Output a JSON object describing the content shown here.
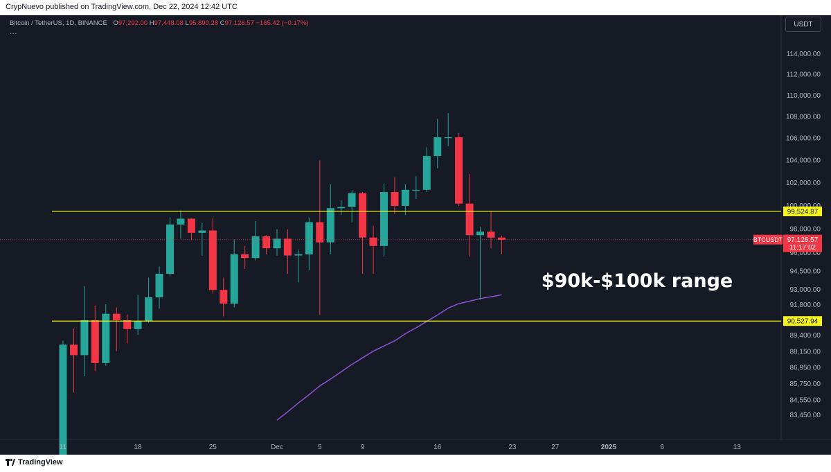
{
  "header": {
    "publish_line": "CrypNuevo published on TradingView.com, Dec 22, 2024 12:42 UTC"
  },
  "legend": {
    "symbol": "Bitcoin / TetherUS, 1D, BINANCE",
    "open_label": "O",
    "open": "97,292.00",
    "high_label": "H",
    "high": "97,448.08",
    "low_label": "L",
    "low": "95,890.28",
    "close_label": "C",
    "close": "97,126.57",
    "change": "−165.42 (−0.17%)",
    "more": "..."
  },
  "currency": "USDT",
  "footer": {
    "brand": "TradingView"
  },
  "colors": {
    "up": "#26a69a",
    "down": "#f23645",
    "level": "#f7f71b",
    "ma": "#8e52d6",
    "price_line": "#f23645"
  },
  "chart_data": {
    "type": "candlestick",
    "symbol": "BTCUSDT",
    "timeframe": "1D",
    "exchange": "BINANCE",
    "x_ticks": [
      "11",
      "18",
      "25",
      "Dec",
      "5",
      "9",
      "16",
      "23",
      "27",
      "2025",
      "6",
      "13"
    ],
    "y_ticks": [
      "114,000.00",
      "112,000.00",
      "110,000.00",
      "108,000.00",
      "106,000.00",
      "104,000.00",
      "102,000.00",
      "100,000.00",
      "98,000.00",
      "96,000.00",
      "94,500.00",
      "93,000.00",
      "91,800.00",
      "89,400.00",
      "88,150.00",
      "86,950.00",
      "85,750.00",
      "84,550.00",
      "83,450.00"
    ],
    "candles": [
      {
        "date": "2024-11-11",
        "o": 80400,
        "h": 89000,
        "l": 80200,
        "c": 88700
      },
      {
        "date": "2024-11-12",
        "o": 88700,
        "h": 89950,
        "l": 85100,
        "c": 87900
      },
      {
        "date": "2024-11-13",
        "o": 87900,
        "h": 93300,
        "l": 86300,
        "c": 90600
      },
      {
        "date": "2024-11-14",
        "o": 90600,
        "h": 91750,
        "l": 86700,
        "c": 87300
      },
      {
        "date": "2024-11-15",
        "o": 87300,
        "h": 91850,
        "l": 87100,
        "c": 91100
      },
      {
        "date": "2024-11-16",
        "o": 91100,
        "h": 91600,
        "l": 88200,
        "c": 90600
      },
      {
        "date": "2024-11-17",
        "o": 90600,
        "h": 91050,
        "l": 88800,
        "c": 89900
      },
      {
        "date": "2024-11-18",
        "o": 89900,
        "h": 92600,
        "l": 89450,
        "c": 90500
      },
      {
        "date": "2024-11-19",
        "o": 90500,
        "h": 94000,
        "l": 90400,
        "c": 92400
      },
      {
        "date": "2024-11-20",
        "o": 92400,
        "h": 94900,
        "l": 91500,
        "c": 94300
      },
      {
        "date": "2024-11-21",
        "o": 94300,
        "h": 99000,
        "l": 94100,
        "c": 98400
      },
      {
        "date": "2024-11-22",
        "o": 98400,
        "h": 99600,
        "l": 97200,
        "c": 98900
      },
      {
        "date": "2024-11-23",
        "o": 98900,
        "h": 98950,
        "l": 97100,
        "c": 97700
      },
      {
        "date": "2024-11-24",
        "o": 97700,
        "h": 98550,
        "l": 95800,
        "c": 97900
      },
      {
        "date": "2024-11-25",
        "o": 97900,
        "h": 98950,
        "l": 92700,
        "c": 93000
      },
      {
        "date": "2024-11-26",
        "o": 93000,
        "h": 94000,
        "l": 90900,
        "c": 91900
      },
      {
        "date": "2024-11-27",
        "o": 91900,
        "h": 97150,
        "l": 91600,
        "c": 95900
      },
      {
        "date": "2024-11-28",
        "o": 95900,
        "h": 96600,
        "l": 94700,
        "c": 95600
      },
      {
        "date": "2024-11-29",
        "o": 95600,
        "h": 98700,
        "l": 95400,
        "c": 97400
      },
      {
        "date": "2024-11-30",
        "o": 97400,
        "h": 97500,
        "l": 95900,
        "c": 96400
      },
      {
        "date": "2024-12-01",
        "o": 96400,
        "h": 98000,
        "l": 95800,
        "c": 97200
      },
      {
        "date": "2024-12-02",
        "o": 97200,
        "h": 98000,
        "l": 94300,
        "c": 95800
      },
      {
        "date": "2024-12-03",
        "o": 95800,
        "h": 96300,
        "l": 93600,
        "c": 95900
      },
      {
        "date": "2024-12-04",
        "o": 95900,
        "h": 99000,
        "l": 94600,
        "c": 98600
      },
      {
        "date": "2024-12-05",
        "o": 98600,
        "h": 104000,
        "l": 91000,
        "c": 96900
      },
      {
        "date": "2024-12-06",
        "o": 96900,
        "h": 101900,
        "l": 95900,
        "c": 99800
      },
      {
        "date": "2024-12-07",
        "o": 99800,
        "h": 100500,
        "l": 99200,
        "c": 99900
      },
      {
        "date": "2024-12-08",
        "o": 99900,
        "h": 101350,
        "l": 98600,
        "c": 101100
      },
      {
        "date": "2024-12-09",
        "o": 101100,
        "h": 101200,
        "l": 94300,
        "c": 97300
      },
      {
        "date": "2024-12-10",
        "o": 97300,
        "h": 98300,
        "l": 94300,
        "c": 96600
      },
      {
        "date": "2024-12-11",
        "o": 96600,
        "h": 101900,
        "l": 95700,
        "c": 101200
      },
      {
        "date": "2024-12-12",
        "o": 101200,
        "h": 102500,
        "l": 99300,
        "c": 100000
      },
      {
        "date": "2024-12-13",
        "o": 100000,
        "h": 101900,
        "l": 99200,
        "c": 101400
      },
      {
        "date": "2024-12-14",
        "o": 101400,
        "h": 102600,
        "l": 100600,
        "c": 101400
      },
      {
        "date": "2024-12-15",
        "o": 101400,
        "h": 105200,
        "l": 101200,
        "c": 104400
      },
      {
        "date": "2024-12-16",
        "o": 104400,
        "h": 107800,
        "l": 103300,
        "c": 106100
      },
      {
        "date": "2024-12-17",
        "o": 106100,
        "h": 108350,
        "l": 105300,
        "c": 106100
      },
      {
        "date": "2024-12-18",
        "o": 106100,
        "h": 106500,
        "l": 100000,
        "c": 100200
      },
      {
        "date": "2024-12-19",
        "o": 100200,
        "h": 102800,
        "l": 95700,
        "c": 97500
      },
      {
        "date": "2024-12-20",
        "o": 97500,
        "h": 98200,
        "l": 92200,
        "c": 97800
      },
      {
        "date": "2024-12-21",
        "o": 97800,
        "h": 99500,
        "l": 96400,
        "c": 97300
      },
      {
        "date": "2024-12-22",
        "o": 97300,
        "h": 97450,
        "l": 95900,
        "c": 97100
      }
    ],
    "moving_average": {
      "start_date": "2024-12-01",
      "values": [
        83100,
        83700,
        84350,
        84950,
        85600,
        86100,
        86650,
        87200,
        87700,
        88200,
        88600,
        89000,
        89550,
        90000,
        90500,
        91000,
        91550,
        91900,
        92100,
        92300,
        92450,
        92600
      ]
    },
    "levels": [
      {
        "value": 99524.87,
        "label": "99,524.87"
      },
      {
        "value": 90527.94,
        "label": "90,527.94"
      }
    ],
    "last_price": {
      "value": 97126.57,
      "symbol_label": "BTCUSDT",
      "price_label": "97,126.57",
      "countdown": "11:17:02"
    },
    "annotation": "$90k-$100k range"
  }
}
